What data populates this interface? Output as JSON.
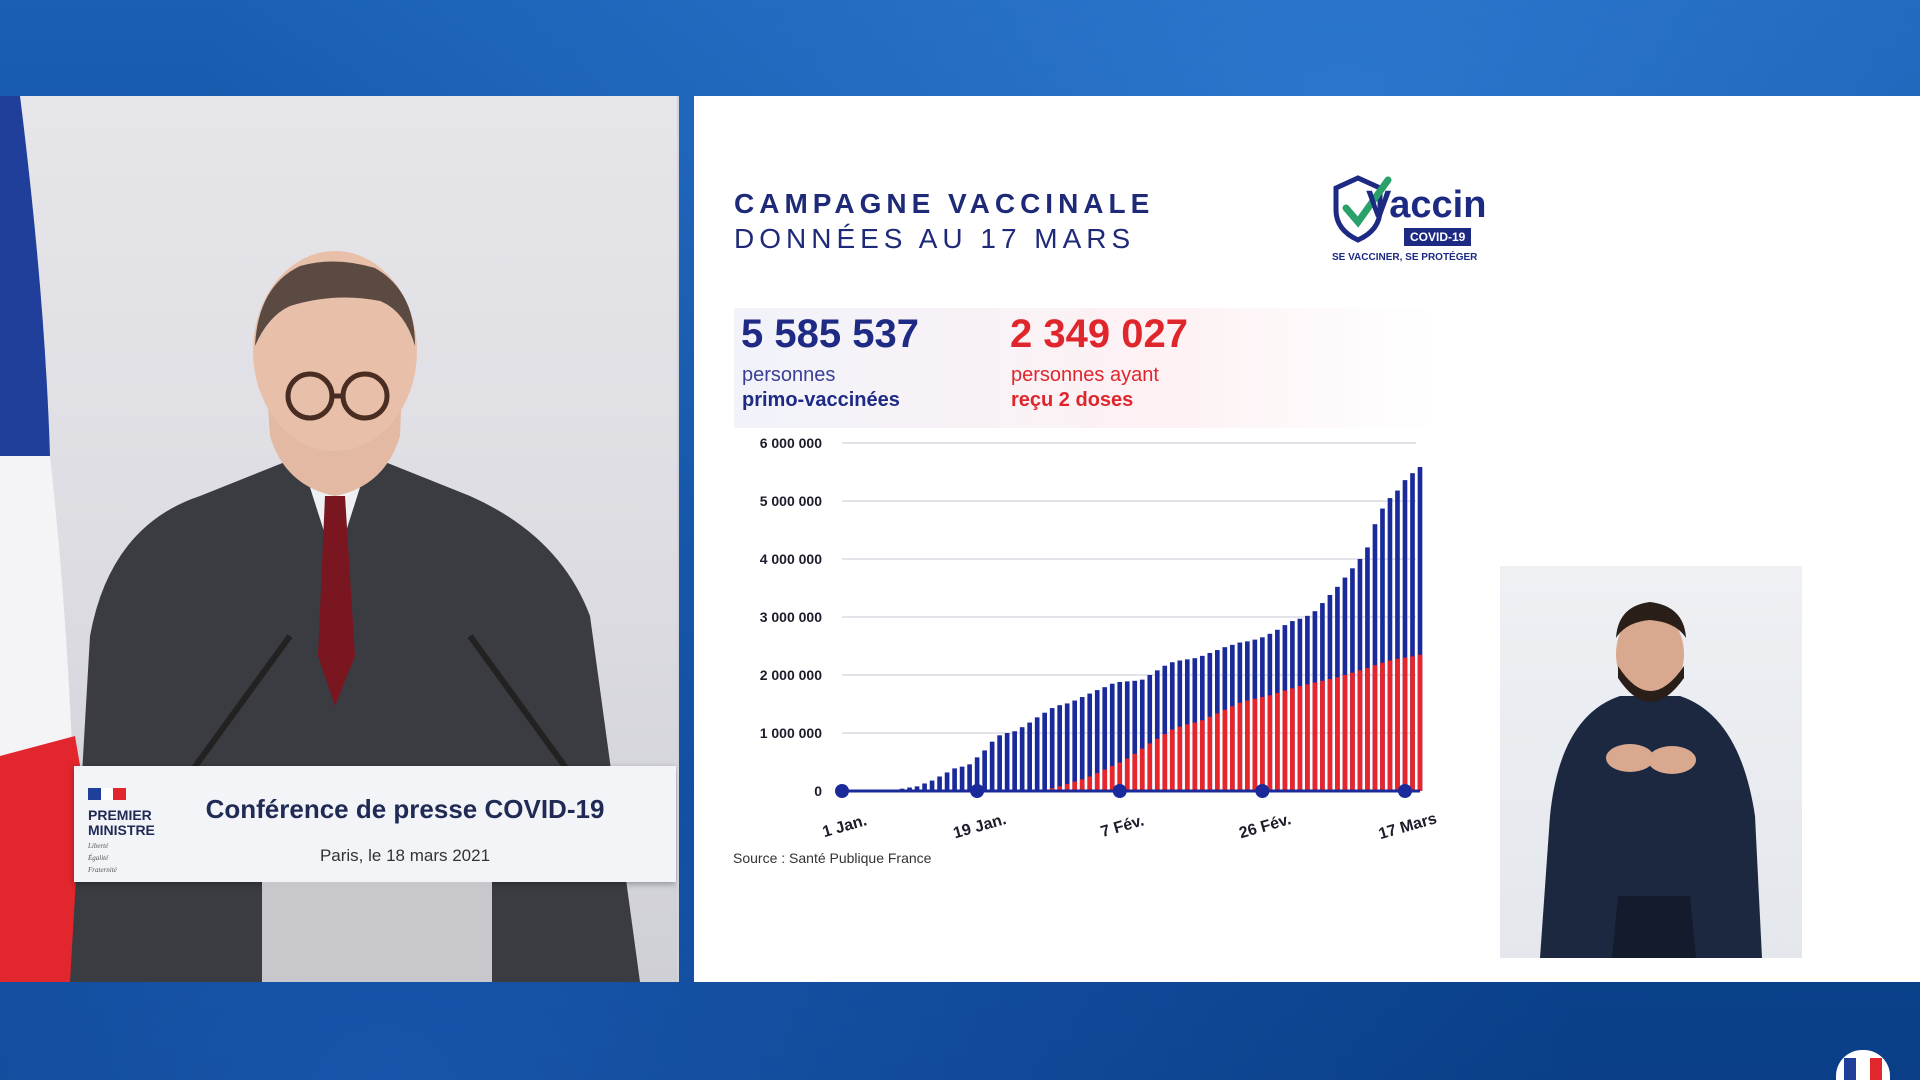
{
  "slide": {
    "title_line1": "CAMPAGNE VACCINALE",
    "title_line2": "DONNÉES AU 17 MARS",
    "logo": {
      "word": "Vaccin",
      "badge": "COVID-19",
      "tagline": "SE VACCINER, SE PROTÉGER"
    },
    "kpi1": {
      "value": "5 585 537",
      "label1": "personnes",
      "label2": "primo-vaccinées"
    },
    "kpi2": {
      "value": "2 349 027",
      "label1": "personnes ayant",
      "label2": "reçu 2 doses"
    },
    "source": "Source : Santé Publique France"
  },
  "podium": {
    "title": "Conférence de presse COVID-19",
    "subtitle": "Paris, le 18 mars 2021",
    "institution_line1": "PREMIER",
    "institution_line2": "MINISTRE",
    "motto": [
      "Liberté",
      "Égalité",
      "Fraternité"
    ]
  },
  "colors": {
    "navy": "#1e2a84",
    "red": "#e0262d",
    "bar_blue": "#1a2a9a",
    "bar_red": "#e8252b"
  },
  "chart_data": {
    "type": "bar",
    "stacked_overlay": true,
    "x_ticks": [
      "1 Jan.",
      "19 Jan.",
      "7 Fév.",
      "26 Fév.",
      "17 Mars"
    ],
    "x_tick_day_index": [
      0,
      18,
      37,
      56,
      75
    ],
    "y_ticks": [
      "6 000 000",
      "5 000 000",
      "4 000 000",
      "3 000 000",
      "2 000 000",
      "1 000 000",
      "0"
    ],
    "ylim": [
      0,
      6000000
    ],
    "grid": true,
    "series": [
      {
        "name": "personnes primo-vaccinées",
        "color": "#1a2a9a",
        "values": [
          0,
          0,
          0,
          0,
          0,
          0,
          10000,
          20000,
          40000,
          60000,
          80000,
          130000,
          180000,
          250000,
          320000,
          390000,
          420000,
          460000,
          580000,
          700000,
          850000,
          960000,
          1000000,
          1030000,
          1100000,
          1180000,
          1270000,
          1350000,
          1430000,
          1480000,
          1510000,
          1560000,
          1620000,
          1680000,
          1740000,
          1790000,
          1850000,
          1880000,
          1890000,
          1900000,
          1920000,
          2000000,
          2080000,
          2160000,
          2220000,
          2250000,
          2270000,
          2290000,
          2330000,
          2380000,
          2430000,
          2480000,
          2520000,
          2560000,
          2580000,
          2610000,
          2650000,
          2710000,
          2780000,
          2860000,
          2930000,
          2970000,
          3020000,
          3100000,
          3240000,
          3380000,
          3520000,
          3680000,
          3840000,
          4000000,
          4200000,
          4600000,
          4870000,
          5050000,
          5180000,
          5360000,
          5480000,
          5585537
        ]
      },
      {
        "name": "personnes ayant reçu 2 doses",
        "color": "#e8252b",
        "values": [
          0,
          0,
          0,
          0,
          0,
          0,
          0,
          0,
          0,
          0,
          0,
          0,
          0,
          0,
          0,
          0,
          0,
          0,
          0,
          0,
          0,
          0,
          0,
          0,
          0,
          0,
          0,
          20000,
          50000,
          80000,
          120000,
          160000,
          200000,
          250000,
          310000,
          370000,
          430000,
          490000,
          560000,
          640000,
          730000,
          820000,
          900000,
          980000,
          1060000,
          1110000,
          1150000,
          1180000,
          1220000,
          1280000,
          1340000,
          1400000,
          1460000,
          1520000,
          1560000,
          1590000,
          1620000,
          1650000,
          1690000,
          1730000,
          1770000,
          1810000,
          1840000,
          1870000,
          1900000,
          1930000,
          1960000,
          2000000,
          2040000,
          2080000,
          2120000,
          2170000,
          2210000,
          2250000,
          2280000,
          2300000,
          2320000,
          2349027
        ]
      }
    ]
  }
}
